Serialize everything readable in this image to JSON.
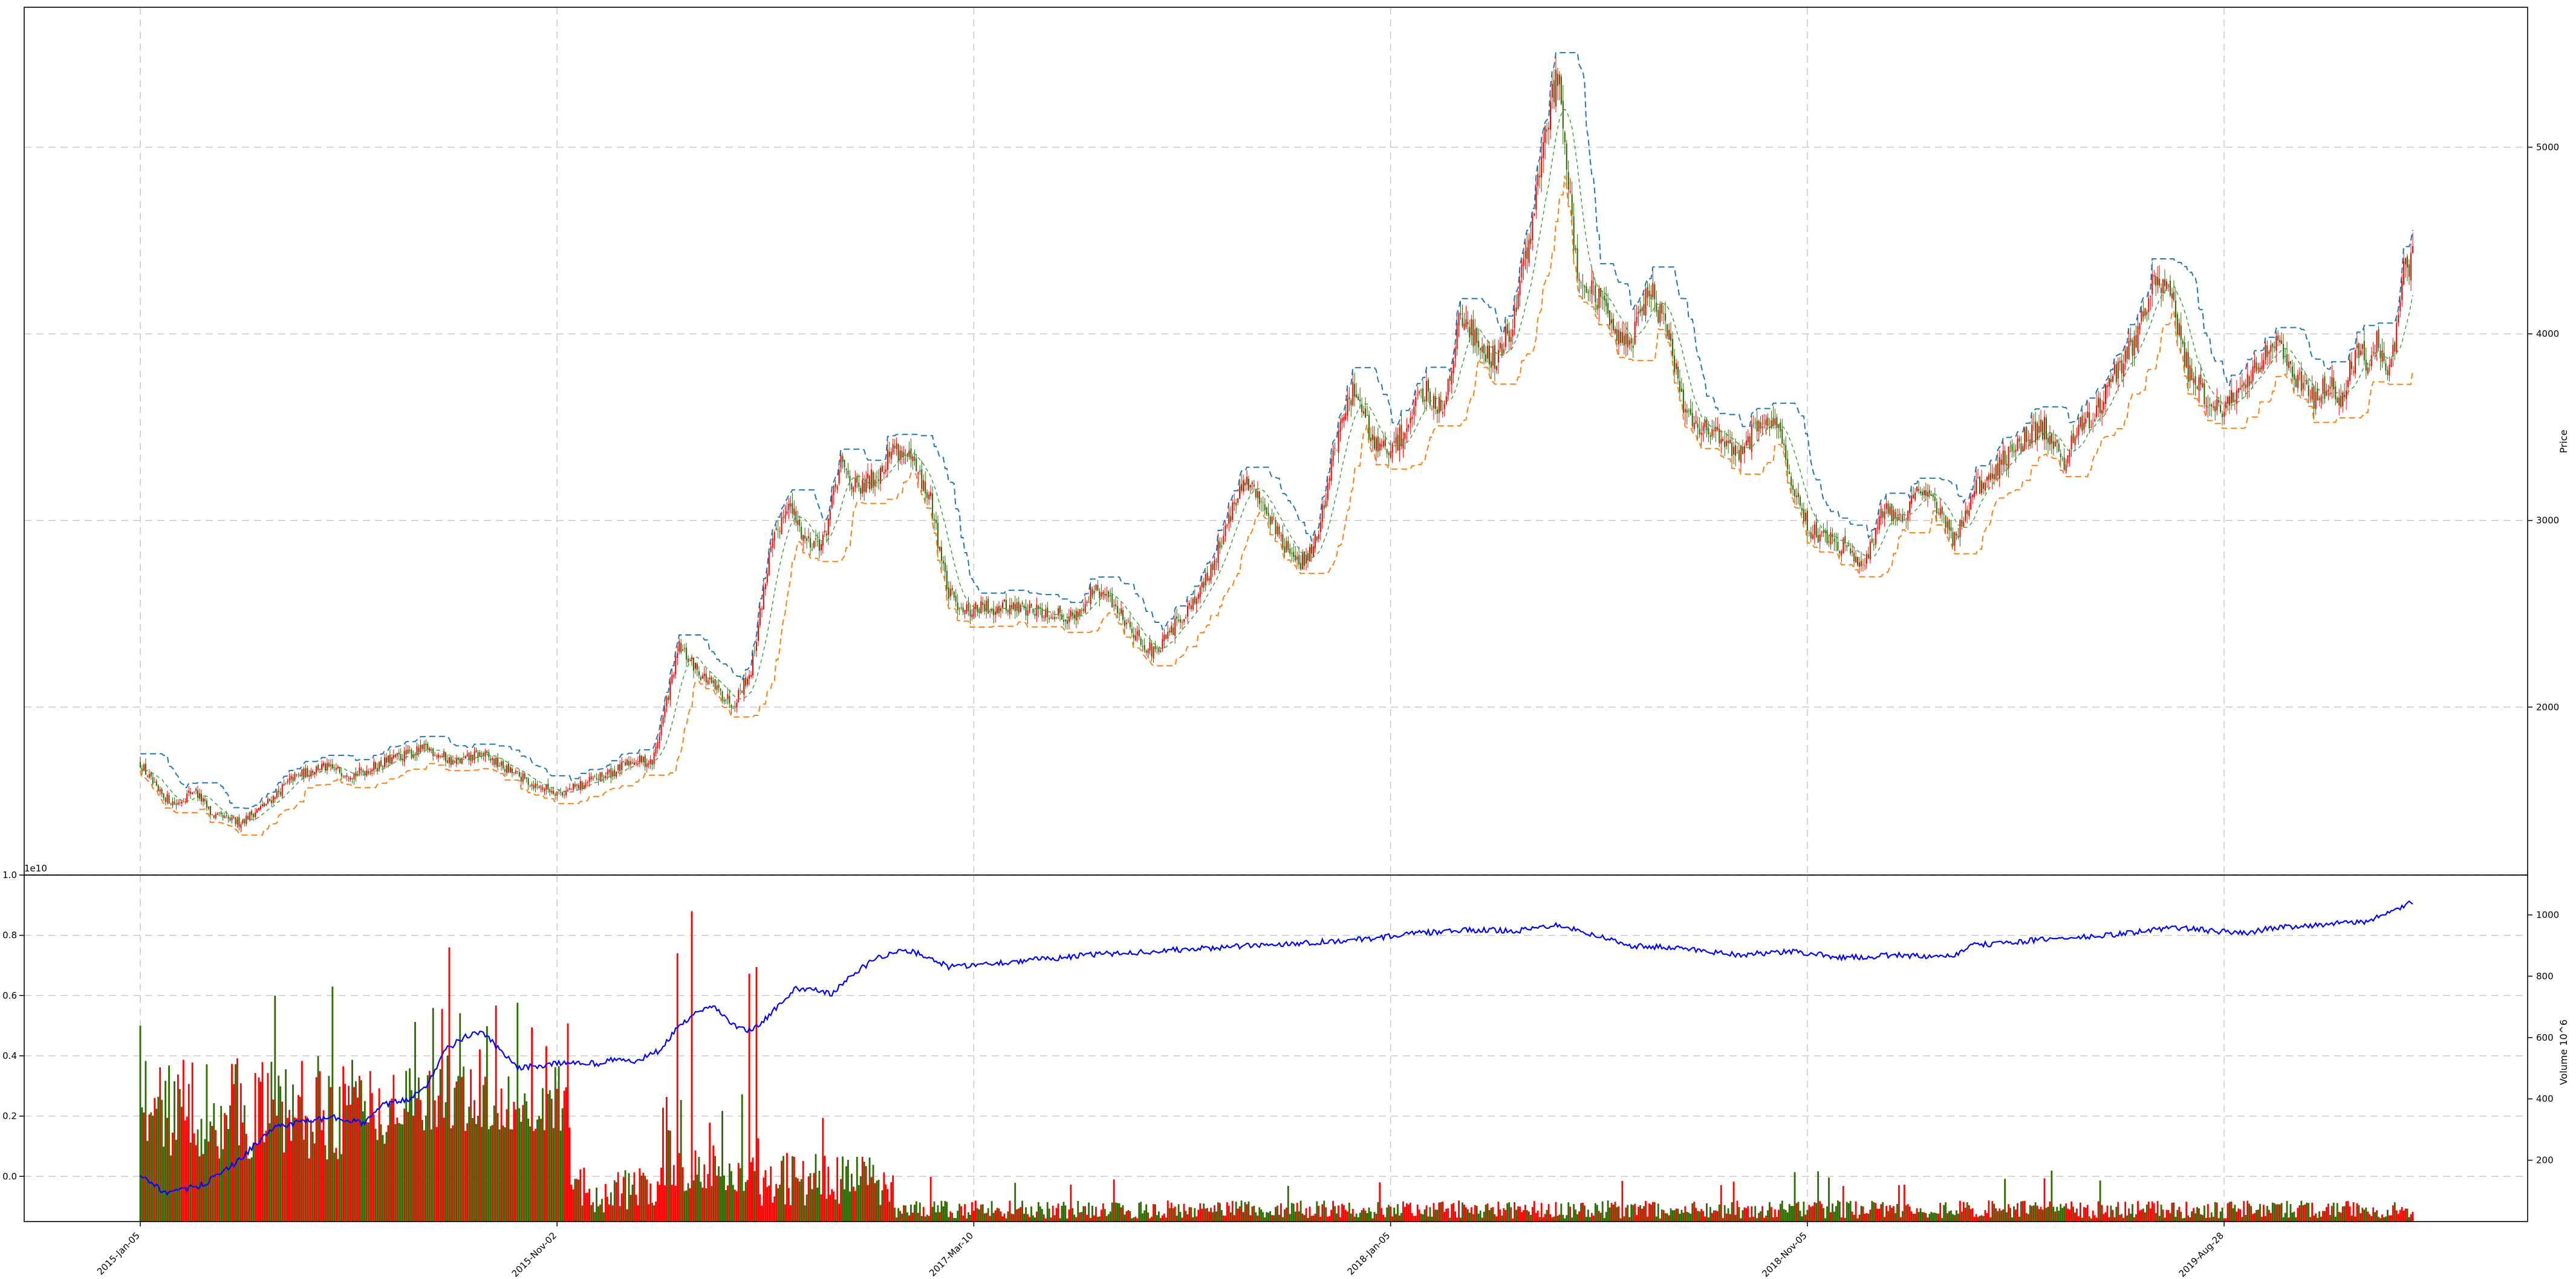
{
  "chart_data": [
    {
      "type": "line",
      "panel": "price",
      "ylabel": "Price",
      "y_ticks": [
        2000,
        3000,
        4000,
        5000
      ],
      "ylim": [
        1100,
        5750
      ],
      "grid": true,
      "series": [
        {
          "values_key": "close",
          "color": "#d62728",
          "style": "candles"
        },
        {
          "values_key": "band_upper",
          "color": "#1f77b4",
          "style": "dashed"
        },
        {
          "values_key": "band_lower",
          "color": "#ff7f0e",
          "style": "dashed"
        },
        {
          "values_key": "mid",
          "color": "#2ca02c",
          "style": "dashed"
        }
      ],
      "x_index_range": [
        0,
        1230
      ],
      "keypoints_close": [
        [
          0,
          1700
        ],
        [
          10,
          1540
        ],
        [
          20,
          1480
        ],
        [
          30,
          1560
        ],
        [
          40,
          1420
        ],
        [
          55,
          1380
        ],
        [
          70,
          1480
        ],
        [
          85,
          1620
        ],
        [
          100,
          1680
        ],
        [
          120,
          1640
        ],
        [
          140,
          1720
        ],
        [
          160,
          1780
        ],
        [
          175,
          1700
        ],
        [
          190,
          1750
        ],
        [
          205,
          1660
        ],
        [
          220,
          1580
        ],
        [
          235,
          1540
        ],
        [
          250,
          1600
        ],
        [
          265,
          1660
        ],
        [
          275,
          1720
        ],
        [
          285,
          1700
        ],
        [
          290,
          1900
        ],
        [
          300,
          2320
        ],
        [
          310,
          2200
        ],
        [
          320,
          2100
        ],
        [
          330,
          2020
        ],
        [
          340,
          2200
        ],
        [
          350,
          2800
        ],
        [
          360,
          3100
        ],
        [
          370,
          2900
        ],
        [
          380,
          2880
        ],
        [
          390,
          3300
        ],
        [
          400,
          3150
        ],
        [
          410,
          3250
        ],
        [
          420,
          3400
        ],
        [
          430,
          3300
        ],
        [
          440,
          3100
        ],
        [
          450,
          2600
        ],
        [
          460,
          2520
        ],
        [
          480,
          2540
        ],
        [
          500,
          2520
        ],
        [
          520,
          2480
        ],
        [
          530,
          2620
        ],
        [
          540,
          2580
        ],
        [
          555,
          2380
        ],
        [
          565,
          2280
        ],
        [
          575,
          2420
        ],
        [
          585,
          2560
        ],
        [
          595,
          2700
        ],
        [
          605,
          3000
        ],
        [
          615,
          3200
        ],
        [
          625,
          3100
        ],
        [
          635,
          2900
        ],
        [
          645,
          2750
        ],
        [
          655,
          2900
        ],
        [
          665,
          3400
        ],
        [
          675,
          3700
        ],
        [
          685,
          3450
        ],
        [
          695,
          3350
        ],
        [
          705,
          3500
        ],
        [
          715,
          3700
        ],
        [
          725,
          3600
        ],
        [
          735,
          4100
        ],
        [
          745,
          3950
        ],
        [
          755,
          3850
        ],
        [
          765,
          4100
        ],
        [
          775,
          4600
        ],
        [
          785,
          5250
        ],
        [
          790,
          5400
        ],
        [
          800,
          4300
        ],
        [
          810,
          4200
        ],
        [
          820,
          4050
        ],
        [
          830,
          3950
        ],
        [
          840,
          4250
        ],
        [
          850,
          4000
        ],
        [
          860,
          3600
        ],
        [
          870,
          3500
        ],
        [
          880,
          3450
        ],
        [
          890,
          3350
        ],
        [
          900,
          3500
        ],
        [
          910,
          3550
        ],
        [
          920,
          3150
        ],
        [
          930,
          2950
        ],
        [
          940,
          2900
        ],
        [
          950,
          2850
        ],
        [
          960,
          2780
        ],
        [
          970,
          3050
        ],
        [
          980,
          3000
        ],
        [
          990,
          3200
        ],
        [
          1000,
          3050
        ],
        [
          1010,
          2900
        ],
        [
          1020,
          3150
        ],
        [
          1030,
          3250
        ],
        [
          1040,
          3350
        ],
        [
          1050,
          3450
        ],
        [
          1060,
          3500
        ],
        [
          1070,
          3300
        ],
        [
          1080,
          3500
        ],
        [
          1090,
          3600
        ],
        [
          1100,
          3800
        ],
        [
          1110,
          3950
        ],
        [
          1120,
          4250
        ],
        [
          1128,
          4300
        ],
        [
          1140,
          3800
        ],
        [
          1150,
          3650
        ],
        [
          1160,
          3600
        ],
        [
          1170,
          3700
        ],
        [
          1180,
          3850
        ],
        [
          1190,
          4000
        ],
        [
          1200,
          3750
        ],
        [
          1210,
          3650
        ],
        [
          1215,
          3700
        ],
        [
          1220,
          3750
        ],
        [
          1225,
          3600
        ],
        [
          1230,
          3800
        ],
        [
          1235,
          3900
        ],
        [
          1240,
          3850
        ],
        [
          1245,
          3950
        ],
        [
          1250,
          3800
        ],
        [
          1255,
          3900
        ],
        [
          1260,
          4350
        ],
        [
          1265,
          4400
        ]
      ]
    },
    {
      "type": "bar",
      "panel": "volume",
      "offset_label": "1e10",
      "left_ticks": [
        "0.0",
        "0.2",
        "0.4",
        "0.6",
        "0.8",
        "1.0"
      ],
      "left_ylim": [
        -0.15,
        1.0
      ],
      "right_label": "Volume 10^6",
      "right_ticks": [
        200,
        400,
        600,
        800,
        1000
      ],
      "right_ylim": [
        0,
        1130
      ],
      "up_color": "#ff0000",
      "down_color": "#2e6b00",
      "line_color": "#0000ff",
      "line_keypoints": [
        [
          0,
          150
        ],
        [
          15,
          90
        ],
        [
          35,
          120
        ],
        [
          55,
          200
        ],
        [
          75,
          310
        ],
        [
          95,
          330
        ],
        [
          110,
          340
        ],
        [
          125,
          320
        ],
        [
          135,
          380
        ],
        [
          150,
          400
        ],
        [
          160,
          450
        ],
        [
          170,
          560
        ],
        [
          180,
          600
        ],
        [
          190,
          620
        ],
        [
          200,
          560
        ],
        [
          210,
          500
        ],
        [
          225,
          510
        ],
        [
          240,
          520
        ],
        [
          255,
          515
        ],
        [
          265,
          530
        ],
        [
          275,
          520
        ],
        [
          290,
          560
        ],
        [
          300,
          640
        ],
        [
          310,
          680
        ],
        [
          320,
          700
        ],
        [
          330,
          640
        ],
        [
          340,
          620
        ],
        [
          355,
          700
        ],
        [
          365,
          760
        ],
        [
          375,
          760
        ],
        [
          385,
          740
        ],
        [
          395,
          800
        ],
        [
          410,
          860
        ],
        [
          420,
          880
        ],
        [
          430,
          880
        ],
        [
          440,
          860
        ],
        [
          450,
          830
        ],
        [
          470,
          840
        ],
        [
          490,
          850
        ],
        [
          510,
          860
        ],
        [
          530,
          870
        ],
        [
          560,
          880
        ],
        [
          590,
          890
        ],
        [
          620,
          900
        ],
        [
          650,
          910
        ],
        [
          680,
          920
        ],
        [
          710,
          940
        ],
        [
          740,
          950
        ],
        [
          770,
          950
        ],
        [
          790,
          970
        ],
        [
          800,
          950
        ],
        [
          830,
          900
        ],
        [
          860,
          890
        ],
        [
          890,
          870
        ],
        [
          920,
          880
        ],
        [
          950,
          860
        ],
        [
          980,
          870
        ],
        [
          1000,
          860
        ],
        [
          1010,
          870
        ],
        [
          1020,
          900
        ],
        [
          1040,
          910
        ],
        [
          1060,
          920
        ],
        [
          1090,
          930
        ],
        [
          1120,
          950
        ],
        [
          1130,
          960
        ],
        [
          1150,
          950
        ],
        [
          1170,
          940
        ],
        [
          1190,
          960
        ],
        [
          1220,
          970
        ],
        [
          1240,
          980
        ],
        [
          1250,
          1000
        ],
        [
          1260,
          1030
        ],
        [
          1265,
          1040
        ]
      ]
    }
  ],
  "x_axis": {
    "ticks": [
      "2015-Jan-05",
      "2015-Nov-02",
      "2017-Mar-10",
      "2018-Jan-05",
      "2018-Nov-05",
      "2019-Aug-28"
    ]
  },
  "colors": {
    "up": "#ff0000",
    "down": "#2e6b00",
    "upper_band": "#1f77b4",
    "lower_band": "#ff7f0e",
    "volume_line": "#0000ff",
    "grid": "#c8c8c8"
  }
}
